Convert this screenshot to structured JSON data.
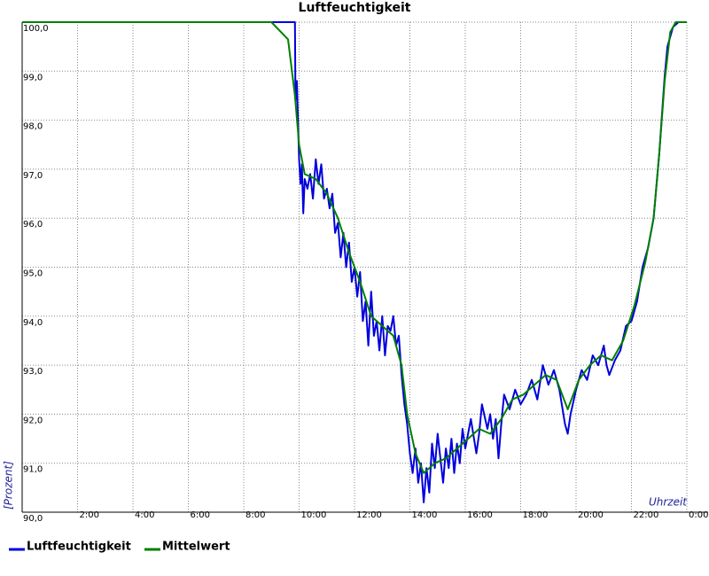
{
  "chart_data": {
    "type": "line",
    "title": "Luftfeuchtigkeit",
    "y_label": "[Prozent]",
    "x_label": "Uhrzeit",
    "xlim": [
      0,
      24
    ],
    "xticks": [
      {
        "value": 2,
        "label": "2:00"
      },
      {
        "value": 4,
        "label": "4:00"
      },
      {
        "value": 6,
        "label": "6:00"
      },
      {
        "value": 8,
        "label": "8:00"
      },
      {
        "value": 10,
        "label": "10:00"
      },
      {
        "value": 12,
        "label": "12:00"
      },
      {
        "value": 14,
        "label": "14:00"
      },
      {
        "value": 16,
        "label": "16:00"
      },
      {
        "value": 18,
        "label": "18:00"
      },
      {
        "value": 20,
        "label": "20:00"
      },
      {
        "value": 22,
        "label": "22:00"
      },
      {
        "value": 24,
        "label": "0:00"
      }
    ],
    "ylim": [
      90,
      100
    ],
    "yticks": [
      {
        "value": 90,
        "label": "90,0"
      },
      {
        "value": 91,
        "label": "91,0"
      },
      {
        "value": 92,
        "label": "92,0"
      },
      {
        "value": 93,
        "label": "93,0"
      },
      {
        "value": 94,
        "label": "94,0"
      },
      {
        "value": 95,
        "label": "95,0"
      },
      {
        "value": 96,
        "label": "96,0"
      },
      {
        "value": 97,
        "label": "97,0"
      },
      {
        "value": 98,
        "label": "98,0"
      },
      {
        "value": 99,
        "label": "99,0"
      },
      {
        "value": 100,
        "label": "100,0"
      }
    ],
    "grid": true,
    "series": [
      {
        "name": "Luftfeuchtigkeit",
        "color": "#0000dd",
        "x": [
          0,
          9.85,
          9.87,
          9.92,
          9.95,
          10.0,
          10.05,
          10.1,
          10.15,
          10.2,
          10.3,
          10.4,
          10.5,
          10.6,
          10.7,
          10.8,
          10.9,
          11.0,
          11.1,
          11.2,
          11.3,
          11.4,
          11.5,
          11.6,
          11.7,
          11.8,
          11.9,
          12.0,
          12.1,
          12.2,
          12.3,
          12.4,
          12.5,
          12.6,
          12.7,
          12.8,
          12.9,
          13.0,
          13.1,
          13.2,
          13.3,
          13.4,
          13.5,
          13.6,
          13.7,
          13.8,
          13.9,
          14.0,
          14.1,
          14.2,
          14.3,
          14.4,
          14.5,
          14.6,
          14.7,
          14.8,
          14.9,
          15.0,
          15.1,
          15.2,
          15.3,
          15.4,
          15.5,
          15.6,
          15.7,
          15.8,
          15.9,
          16.0,
          16.2,
          16.4,
          16.5,
          16.6,
          16.8,
          16.9,
          17.0,
          17.1,
          17.2,
          17.3,
          17.4,
          17.6,
          17.8,
          18.0,
          18.2,
          18.4,
          18.6,
          18.8,
          19.0,
          19.2,
          19.4,
          19.6,
          19.7,
          19.8,
          20.0,
          20.2,
          20.4,
          20.6,
          20.8,
          21.0,
          21.1,
          21.2,
          21.4,
          21.6,
          21.8,
          22.0,
          22.2,
          22.4,
          22.6,
          22.8,
          23.0,
          23.1,
          23.2,
          23.3,
          23.5,
          23.7,
          24
        ],
        "values": [
          100,
          100,
          98.4,
          98.8,
          98.2,
          97.2,
          96.7,
          97.1,
          96.1,
          96.8,
          96.6,
          96.9,
          96.4,
          97.2,
          96.7,
          97.1,
          96.4,
          96.6,
          96.2,
          96.5,
          95.7,
          95.9,
          95.2,
          95.7,
          95.0,
          95.5,
          94.7,
          95.0,
          94.4,
          94.9,
          93.9,
          94.3,
          93.4,
          94.5,
          93.6,
          93.9,
          93.3,
          94.0,
          93.2,
          93.8,
          93.7,
          94.0,
          93.4,
          93.6,
          92.8,
          92.2,
          91.8,
          91.2,
          90.8,
          91.3,
          90.6,
          91.0,
          90.2,
          90.9,
          90.4,
          91.4,
          90.9,
          91.6,
          91.1,
          90.6,
          91.3,
          90.9,
          91.5,
          90.8,
          91.4,
          91.0,
          91.7,
          91.3,
          91.9,
          91.2,
          91.6,
          92.2,
          91.7,
          92.0,
          91.5,
          91.9,
          91.1,
          91.8,
          92.4,
          92.1,
          92.5,
          92.2,
          92.4,
          92.7,
          92.3,
          93.0,
          92.6,
          92.9,
          92.5,
          91.8,
          91.6,
          92.0,
          92.5,
          92.9,
          92.7,
          93.2,
          93.0,
          93.4,
          93.0,
          92.8,
          93.1,
          93.3,
          93.8,
          93.9,
          94.3,
          95.0,
          95.4,
          96.0,
          97.3,
          98.1,
          98.9,
          99.5,
          99.9,
          100,
          100
        ]
      },
      {
        "name": "Mittelwert",
        "color": "#008000",
        "x": [
          0,
          9.0,
          9.6,
          9.85,
          10.0,
          10.2,
          10.6,
          11.0,
          11.4,
          11.8,
          12.2,
          12.6,
          13.0,
          13.4,
          13.7,
          13.9,
          14.2,
          14.5,
          14.9,
          15.3,
          15.7,
          16.1,
          16.5,
          16.9,
          17.3,
          17.7,
          18.1,
          18.5,
          18.9,
          19.3,
          19.7,
          20.1,
          20.5,
          20.9,
          21.3,
          21.7,
          22.1,
          22.5,
          22.8,
          23.0,
          23.2,
          23.4,
          23.6,
          24
        ],
        "values": [
          100,
          100,
          99.65,
          98.5,
          97.5,
          96.9,
          96.8,
          96.5,
          96.0,
          95.3,
          94.7,
          94.0,
          93.8,
          93.6,
          93.0,
          92.0,
          91.2,
          90.8,
          91.0,
          91.1,
          91.3,
          91.5,
          91.7,
          91.6,
          91.9,
          92.3,
          92.4,
          92.6,
          92.8,
          92.7,
          92.1,
          92.7,
          93.0,
          93.2,
          93.1,
          93.5,
          94.2,
          95.1,
          96.0,
          97.3,
          98.8,
          99.8,
          100,
          100
        ]
      }
    ]
  }
}
